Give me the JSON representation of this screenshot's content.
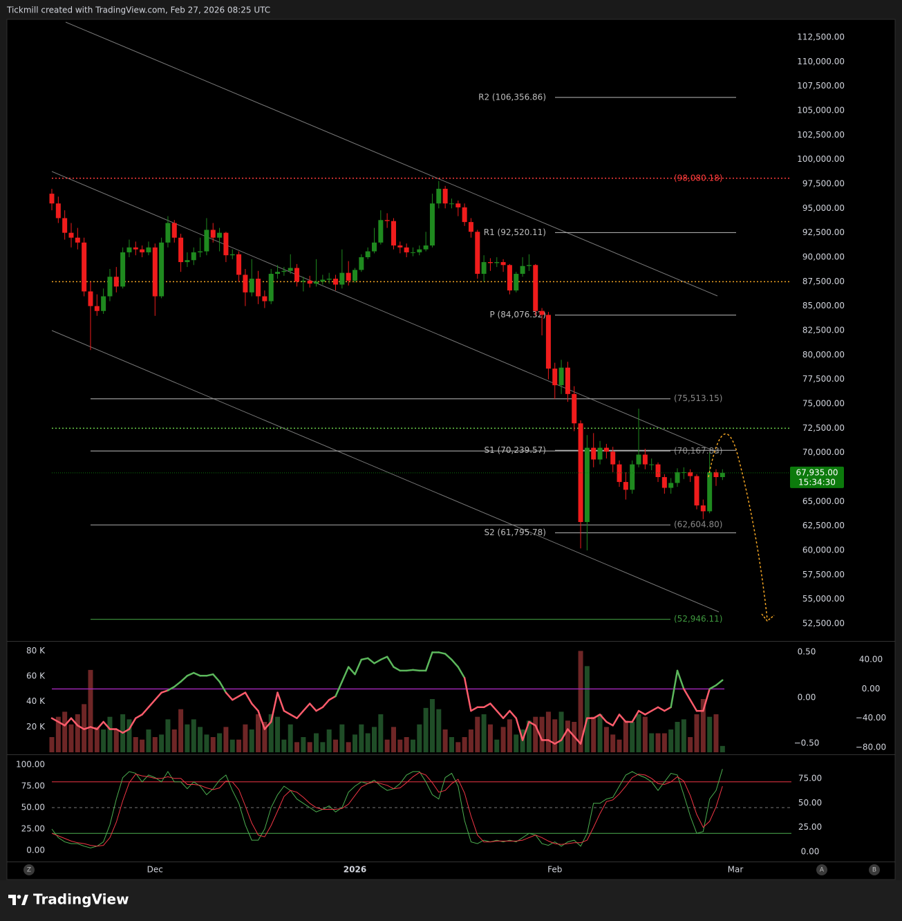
{
  "header": "Tickmill created with TradingView.com, Feb 27, 2026 08:25 UTC",
  "footer_logo": "TradingView",
  "buttons": [
    "Z",
    "A",
    "B"
  ],
  "chart_data": {
    "type": "candlestick",
    "categories": [
      null,
      null,
      null,
      null,
      null,
      null,
      null,
      null,
      null,
      null,
      null,
      null,
      null,
      null,
      null,
      null,
      "Dec",
      null,
      null,
      null,
      null,
      null,
      null,
      null,
      null,
      null,
      null,
      null,
      null,
      null,
      null,
      null,
      null,
      null,
      null,
      null,
      null,
      null,
      null,
      null,
      null,
      null,
      null,
      null,
      null,
      null,
      null,
      "2026",
      null,
      null,
      null,
      null,
      null,
      null,
      null,
      null,
      null,
      null,
      null,
      null,
      null,
      null,
      null,
      null,
      null,
      null,
      null,
      null,
      null,
      null,
      null,
      null,
      null,
      null,
      null,
      null,
      null,
      null,
      "Feb",
      null,
      null,
      null,
      null,
      null,
      null,
      null,
      null,
      null,
      null,
      null,
      null,
      null,
      null,
      null,
      null,
      null,
      null,
      null,
      null,
      null,
      null,
      null,
      null,
      null,
      null,
      null,
      "Mar"
    ],
    "open": [
      96500,
      95500,
      94000,
      92500,
      92000,
      91500,
      86500,
      85000,
      84500,
      86000,
      88000,
      87000,
      90500,
      91000,
      90800,
      90500,
      91000,
      86000,
      91500,
      93500,
      92000,
      89500,
      89700,
      90500,
      90600,
      92800,
      92000,
      92500,
      90200,
      90300,
      88200,
      86400,
      87800,
      86000,
      85500,
      88300,
      88500,
      88600,
      88900,
      87500,
      87600,
      87300,
      87500,
      87700,
      87800,
      87200,
      88400,
      87600,
      88700,
      90000,
      90600,
      91500,
      93800,
      93700,
      91200,
      91000,
      90500,
      90500,
      90800,
      91200,
      95500,
      97000,
      95500,
      95500,
      95100,
      93600,
      92600,
      88300,
      89500,
      89400,
      89500,
      89200,
      86600,
      88300,
      89100,
      89200,
      84500,
      84100,
      78600,
      76900,
      78700,
      76000,
      73000,
      62900,
      70500,
      69300,
      70500,
      70100,
      68800,
      67000,
      66200,
      68800,
      69800,
      68800,
      68800,
      67500,
      66400,
      66900,
      68000,
      68000,
      67600,
      64600,
      64000,
      68000,
      67500,
      null,
      null
    ],
    "high": [
      97000,
      96200,
      94800,
      93500,
      93000,
      92000,
      87500,
      86200,
      86800,
      88800,
      89000,
      91000,
      91800,
      91600,
      91200,
      91600,
      91400,
      92000,
      94200,
      93800,
      92400,
      90500,
      91000,
      92000,
      94000,
      93500,
      93000,
      92600,
      90800,
      90600,
      88800,
      89800,
      88600,
      86600,
      88800,
      89200,
      89000,
      90300,
      89300,
      88000,
      88100,
      89800,
      88200,
      88400,
      88200,
      90800,
      89600,
      88900,
      90300,
      91000,
      93000,
      94800,
      94500,
      94000,
      91600,
      91400,
      91000,
      91200,
      92600,
      96500,
      97800,
      97300,
      96000,
      95800,
      95500,
      94000,
      92800,
      90200,
      89900,
      90000,
      89800,
      89300,
      88500,
      90000,
      90300,
      89300,
      84800,
      84400,
      79200,
      79500,
      79300,
      76800,
      73300,
      71800,
      72000,
      71200,
      70900,
      70600,
      69200,
      68000,
      69200,
      74500,
      70400,
      69400,
      69000,
      67800,
      67400,
      68400,
      68500,
      68300,
      67800,
      65200,
      70000,
      68300,
      68300,
      null,
      null
    ],
    "low": [
      94800,
      93500,
      91800,
      91000,
      90800,
      86000,
      80500,
      84000,
      84200,
      85500,
      86400,
      86800,
      90000,
      90200,
      90000,
      90200,
      84000,
      85800,
      91000,
      91500,
      88500,
      89000,
      89200,
      90000,
      90200,
      91500,
      90600,
      89500,
      89800,
      87500,
      85000,
      86000,
      85200,
      84800,
      85200,
      87800,
      88100,
      88300,
      87000,
      86500,
      86900,
      87000,
      87200,
      87300,
      86600,
      86800,
      87100,
      87400,
      88500,
      89800,
      90400,
      91300,
      93000,
      90800,
      90400,
      90000,
      90100,
      90200,
      90600,
      91000,
      95000,
      95000,
      95000,
      94200,
      93200,
      92000,
      87800,
      87500,
      88600,
      89000,
      88500,
      86200,
      86400,
      88000,
      88600,
      84000,
      82000,
      77500,
      75500,
      76000,
      75200,
      72200,
      60200,
      60000,
      68500,
      68800,
      69400,
      68000,
      66500,
      65200,
      65800,
      68500,
      68300,
      68200,
      67000,
      65800,
      65800,
      66500,
      67300,
      67000,
      64200,
      63200,
      63800,
      66600,
      67200,
      null,
      null
    ],
    "close": [
      95500,
      94000,
      92500,
      92000,
      91500,
      86500,
      85000,
      84500,
      86000,
      88000,
      87000,
      90500,
      91000,
      90800,
      90500,
      91000,
      86000,
      91500,
      93500,
      92000,
      89500,
      89700,
      90500,
      90600,
      92800,
      92000,
      92500,
      90200,
      90300,
      88200,
      86400,
      87800,
      86000,
      85500,
      88300,
      88500,
      88600,
      88900,
      87500,
      87600,
      87300,
      87500,
      87700,
      87800,
      87200,
      88400,
      87600,
      88700,
      90000,
      90600,
      91500,
      93800,
      93700,
      91200,
      91000,
      90500,
      90500,
      90800,
      91200,
      95500,
      97000,
      95500,
      95500,
      95100,
      93600,
      92600,
      88300,
      89500,
      89400,
      89500,
      89200,
      86600,
      88300,
      89100,
      89200,
      84500,
      84100,
      78600,
      76900,
      78700,
      76000,
      73000,
      62900,
      70500,
      69300,
      70500,
      70100,
      68800,
      67000,
      66200,
      68800,
      69800,
      68800,
      68800,
      67500,
      66400,
      66900,
      68000,
      68000,
      67600,
      64600,
      64000,
      68000,
      67500,
      67935,
      null,
      null
    ],
    "up_color": "#1f8a1f",
    "down_color": "#f01c1c",
    "ylim": [
      50730,
      114340
    ],
    "yticks": [
      {
        "value": 112500,
        "label": "112,500.00"
      },
      {
        "value": 110000,
        "label": "110,000.00"
      },
      {
        "value": 107500,
        "label": "107,500.00"
      },
      {
        "value": 105000,
        "label": "105,000.00"
      },
      {
        "value": 102500,
        "label": "102,500.00"
      },
      {
        "value": 100000,
        "label": "100,000.00"
      },
      {
        "value": 97500,
        "label": "97,500.00"
      },
      {
        "value": 95000,
        "label": "95,000.00"
      },
      {
        "value": 92500,
        "label": "92,500.00"
      },
      {
        "value": 90000,
        "label": "90,000.00"
      },
      {
        "value": 87500,
        "label": "87,500.00"
      },
      {
        "value": 85000,
        "label": "85,000.00"
      },
      {
        "value": 82500,
        "label": "82,500.00"
      },
      {
        "value": 80000,
        "label": "80,000.00"
      },
      {
        "value": 77500,
        "label": "77,500.00"
      },
      {
        "value": 75000,
        "label": "75,000.00"
      },
      {
        "value": 72500,
        "label": "72,500.00"
      },
      {
        "value": 70000,
        "label": "70,000.00"
      },
      {
        "value": 65000,
        "label": "65,000.00"
      },
      {
        "value": 62500,
        "label": "62,500.00"
      },
      {
        "value": 60000,
        "label": "60,000.00"
      },
      {
        "value": 57500,
        "label": "57,500.00"
      },
      {
        "value": 55000,
        "label": "55,000.00"
      },
      {
        "value": 52500,
        "label": "52,500.00"
      }
    ],
    "last_price": {
      "value": 67935,
      "label": "67,935.00"
    },
    "countdown": "15:34:30",
    "last_price_color": "#0c7a0c",
    "pivot_levels": [
      {
        "value": 106356.86,
        "label": "R2 (106,356.86)"
      },
      {
        "value": 92520.11,
        "label": "R1 (92,520.11)"
      },
      {
        "value": 84076.32,
        "label": "P (84,076.32)"
      },
      {
        "value": 70239.57,
        "label": "S1 (70,239.57)"
      },
      {
        "value": 61795.78,
        "label": "S2 (61,795.78)"
      }
    ],
    "zone_levels": [
      {
        "value": 75513.15,
        "label": "(75,513.15)",
        "color": "#8a8a8a"
      },
      {
        "value": 70167.83,
        "label": "(70,167.83)",
        "color": "#8a8a8a"
      },
      {
        "value": 62604.8,
        "label": "(62,604.80)",
        "color": "#8a8a8a"
      },
      {
        "value": 52946.11,
        "label": "(52,946.11)",
        "color": "#3f9a3f"
      }
    ],
    "dotted_levels": [
      {
        "value": 98080.18,
        "label": "(98,080.18)",
        "color": "#ff3b3b"
      },
      {
        "value": 87500,
        "color": "#f5a623"
      },
      {
        "value": 72500,
        "color": "#6bcf4a"
      }
    ],
    "volume": {
      "values": [
        12000,
        28000,
        32000,
        22000,
        30000,
        38000,
        65000,
        20000,
        18000,
        28000,
        18000,
        30000,
        26000,
        12000,
        10000,
        18000,
        12000,
        14000,
        26000,
        18000,
        34000,
        22000,
        26000,
        20000,
        14000,
        12000,
        15000,
        20000,
        10000,
        10000,
        22000,
        18000,
        30000,
        24000,
        30000,
        28000,
        10000,
        22000,
        8000,
        12000,
        8000,
        15000,
        8000,
        18000,
        10000,
        22000,
        8000,
        14000,
        22000,
        15000,
        20000,
        30000,
        10000,
        20000,
        10000,
        12000,
        10000,
        22000,
        35000,
        42000,
        34000,
        18000,
        12000,
        8000,
        12000,
        18000,
        28000,
        30000,
        22000,
        10000,
        20000,
        26000,
        14000,
        18000,
        25000,
        28000,
        28000,
        32000,
        26000,
        32000,
        25000,
        24000,
        80000,
        68000,
        28000,
        30000,
        20000,
        14000,
        10000,
        25000,
        24000,
        30000,
        28000,
        15000,
        15000,
        15000,
        18000,
        24000,
        26000,
        12000,
        30000,
        42000,
        28000,
        30000,
        5000,
        null,
        null
      ],
      "ylim": [
        0,
        87300
      ],
      "yticks": [
        {
          "value": 80000,
          "label": "80 K"
        },
        {
          "value": 60000,
          "label": "60 K"
        },
        {
          "value": 40000,
          "label": "40 K"
        },
        {
          "value": 20000,
          "label": "20 K"
        }
      ],
      "up_color": "#1f4d27",
      "down_color": "#6e2626"
    },
    "oscillator": {
      "values": [
        -40,
        -45,
        -50,
        -40,
        -50,
        -55,
        -52,
        -55,
        -45,
        -55,
        -55,
        -60,
        -55,
        -40,
        -35,
        -25,
        -15,
        -5,
        -2,
        3,
        10,
        18,
        22,
        18,
        18,
        20,
        10,
        -5,
        -15,
        -10,
        -5,
        -20,
        -30,
        -55,
        -45,
        -5,
        -30,
        -35,
        -40,
        -30,
        -20,
        -30,
        -25,
        -15,
        -10,
        10,
        30,
        20,
        40,
        42,
        35,
        40,
        44,
        30,
        25,
        25,
        26,
        25,
        25,
        50,
        50,
        48,
        40,
        30,
        15,
        -30,
        -25,
        -25,
        -20,
        -30,
        -40,
        -30,
        -40,
        -70,
        -45,
        -50,
        -70,
        -70,
        -75,
        -70,
        -55,
        -65,
        -75,
        -40,
        -40,
        -35,
        -45,
        -50,
        -35,
        -45,
        -45,
        -30,
        -35,
        -30,
        -25,
        -30,
        -25,
        25,
        0,
        -15,
        -30,
        -30,
        0,
        5,
        12,
        null,
        null
      ],
      "ylim": [
        -88.5,
        64.6
      ],
      "yticks": [
        {
          "value": 40,
          "label": "40.00"
        },
        {
          "value": 0,
          "label": "0.00"
        },
        {
          "value": -40,
          "label": "−40.00"
        },
        {
          "value": -80,
          "label": "−80.00"
        }
      ],
      "y2lim": [
        -0.614,
        0.614
      ],
      "y2ticks": [
        {
          "value": 0.5,
          "label": "0.50"
        },
        {
          "value": 0,
          "label": "0.00"
        },
        {
          "value": -0.5,
          "label": "−0.50"
        }
      ],
      "level": 0,
      "level_color": "#9c27b0",
      "up_color": "#5cb85c",
      "down_color": "#ff5c6c"
    },
    "stochastic": {
      "series": [
        {
          "color": "#4caf50",
          "values": [
            25,
            15,
            10,
            8,
            8,
            5,
            3,
            5,
            10,
            30,
            60,
            85,
            92,
            90,
            80,
            88,
            85,
            80,
            92,
            80,
            80,
            72,
            80,
            75,
            65,
            72,
            82,
            88,
            70,
            55,
            30,
            12,
            12,
            25,
            50,
            65,
            75,
            70,
            60,
            55,
            50,
            45,
            48,
            52,
            45,
            50,
            68,
            75,
            80,
            78,
            82,
            75,
            70,
            72,
            78,
            88,
            92,
            92,
            80,
            65,
            60,
            85,
            90,
            75,
            35,
            10,
            8,
            12,
            10,
            12,
            10,
            12,
            10,
            15,
            20,
            18,
            8,
            6,
            10,
            5,
            10,
            12,
            5,
            20,
            55,
            55,
            60,
            62,
            75,
            88,
            92,
            88,
            85,
            80,
            70,
            80,
            90,
            88,
            65,
            40,
            20,
            22,
            60,
            70,
            95,
            null,
            null
          ]
        },
        {
          "color": "#f23645",
          "values": [
            20,
            17,
            14,
            11,
            9,
            8,
            6,
            5,
            6,
            15,
            33,
            58,
            79,
            89,
            87,
            86,
            84,
            84,
            86,
            84,
            84,
            77,
            77,
            76,
            73,
            71,
            73,
            81,
            80,
            71,
            52,
            32,
            18,
            16,
            29,
            46,
            63,
            70,
            68,
            62,
            55,
            50,
            48,
            48,
            48,
            49,
            54,
            64,
            74,
            78,
            80,
            78,
            76,
            72,
            73,
            79,
            86,
            91,
            88,
            79,
            68,
            70,
            78,
            83,
            67,
            40,
            18,
            10,
            10,
            11,
            11,
            11,
            11,
            12,
            15,
            18,
            15,
            11,
            8,
            7,
            8,
            9,
            9,
            12,
            27,
            43,
            57,
            59,
            66,
            75,
            85,
            89,
            88,
            84,
            78,
            77,
            80,
            86,
            81,
            64,
            42,
            27,
            34,
            51,
            75,
            null,
            null
          ]
        }
      ],
      "ylim": [
        -12.1,
        111.3
      ],
      "yticks": [
        {
          "value": 100,
          "label": "100.00"
        },
        {
          "value": 75,
          "label": "75.00"
        },
        {
          "value": 50,
          "label": "50.00"
        },
        {
          "value": 25,
          "label": "25.00"
        },
        {
          "value": 0,
          "label": "0.00"
        }
      ],
      "y2lim": [
        -9.2,
        99.1
      ],
      "y2ticks": [
        {
          "value": 75,
          "label": "75.00"
        },
        {
          "value": 50,
          "label": "50.00"
        },
        {
          "value": 25,
          "label": "25.00"
        },
        {
          "value": 0,
          "label": "0.00"
        }
      ],
      "levels": [
        {
          "value": 80,
          "color": "#f23645"
        },
        {
          "value": 50,
          "color": "#777777"
        },
        {
          "value": 20,
          "color": "#4caf50"
        }
      ]
    }
  }
}
